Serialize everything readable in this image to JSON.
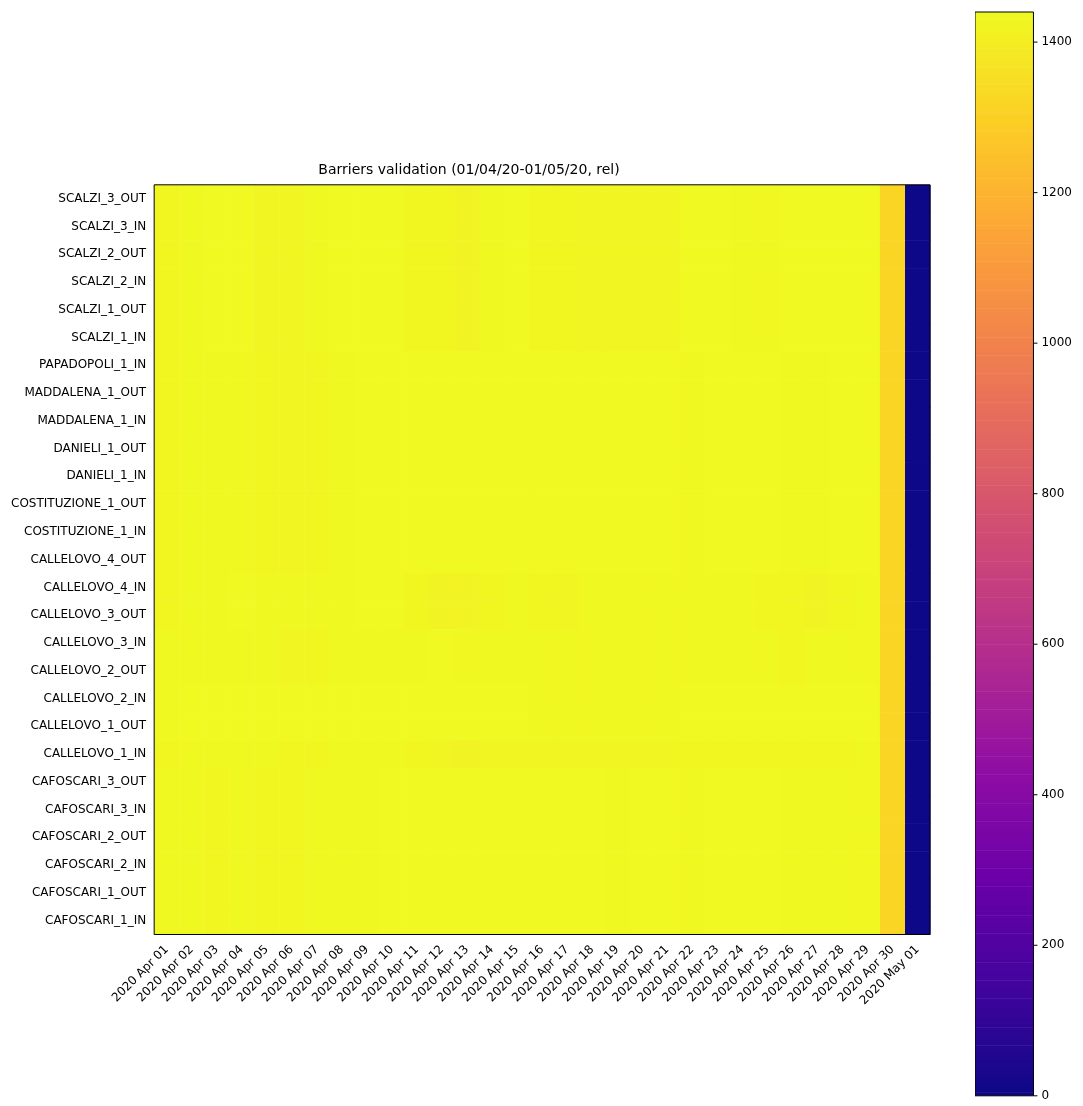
{
  "chart_data": {
    "type": "heatmap",
    "title": "Barriers validation (01/04/20-01/05/20, rel)",
    "categories": [
      "2020 Apr 01",
      "2020 Apr 02",
      "2020 Apr 03",
      "2020 Apr 04",
      "2020 Apr 05",
      "2020 Apr 06",
      "2020 Apr 07",
      "2020 Apr 08",
      "2020 Apr 09",
      "2020 Apr 10",
      "2020 Apr 11",
      "2020 Apr 12",
      "2020 Apr 13",
      "2020 Apr 14",
      "2020 Apr 15",
      "2020 Apr 16",
      "2020 Apr 17",
      "2020 Apr 18",
      "2020 Apr 19",
      "2020 Apr 20",
      "2020 Apr 21",
      "2020 Apr 22",
      "2020 Apr 23",
      "2020 Apr 24",
      "2020 Apr 25",
      "2020 Apr 26",
      "2020 Apr 27",
      "2020 Apr 28",
      "2020 Apr 29",
      "2020 Apr 30",
      "2020 May 01"
    ],
    "y_categories": [
      "SCALZI_3_OUT",
      "SCALZI_3_IN",
      "SCALZI_2_OUT",
      "SCALZI_2_IN",
      "SCALZI_1_OUT",
      "SCALZI_1_IN",
      "PAPADOPOLI_1_IN",
      "MADDALENA_1_OUT",
      "MADDALENA_1_IN",
      "DANIELI_1_OUT",
      "DANIELI_1_IN",
      "COSTITUZIONE_1_OUT",
      "COSTITUZIONE_1_IN",
      "CALLELOVO_4_OUT",
      "CALLELOVO_4_IN",
      "CALLELOVO_3_OUT",
      "CALLELOVO_3_IN",
      "CALLELOVO_2_OUT",
      "CALLELOVO_2_IN",
      "CALLELOVO_1_OUT",
      "CALLELOVO_1_IN",
      "CAFOSCARI_3_OUT",
      "CAFOSCARI_3_IN",
      "CAFOSCARI_2_OUT",
      "CAFOSCARI_2_IN",
      "CAFOSCARI_1_OUT",
      "CAFOSCARI_1_IN"
    ],
    "cells": [
      [
        1430,
        1435,
        1440,
        1440,
        1425,
        1425,
        1435,
        1440,
        1440,
        1440,
        1430,
        1430,
        1420,
        1435,
        1440,
        1430,
        1430,
        1425,
        1425,
        1425,
        1425,
        1440,
        1440,
        1435,
        1435,
        1440,
        1440,
        1440,
        1440,
        1320,
        0
      ],
      [
        1430,
        1435,
        1440,
        1440,
        1425,
        1425,
        1435,
        1440,
        1440,
        1440,
        1430,
        1430,
        1420,
        1435,
        1440,
        1430,
        1430,
        1425,
        1425,
        1425,
        1425,
        1440,
        1440,
        1435,
        1435,
        1440,
        1440,
        1440,
        1440,
        1320,
        0
      ],
      [
        1430,
        1435,
        1440,
        1440,
        1425,
        1425,
        1435,
        1440,
        1440,
        1440,
        1430,
        1430,
        1420,
        1435,
        1440,
        1430,
        1430,
        1425,
        1425,
        1425,
        1425,
        1440,
        1440,
        1435,
        1435,
        1440,
        1440,
        1440,
        1440,
        1320,
        0
      ],
      [
        1430,
        1435,
        1440,
        1440,
        1425,
        1425,
        1435,
        1440,
        1440,
        1440,
        1430,
        1430,
        1420,
        1435,
        1440,
        1430,
        1430,
        1425,
        1425,
        1425,
        1425,
        1440,
        1440,
        1435,
        1435,
        1440,
        1440,
        1440,
        1440,
        1320,
        0
      ],
      [
        1430,
        1435,
        1440,
        1440,
        1425,
        1425,
        1435,
        1440,
        1440,
        1440,
        1430,
        1430,
        1420,
        1435,
        1440,
        1430,
        1430,
        1425,
        1425,
        1425,
        1425,
        1440,
        1440,
        1435,
        1435,
        1440,
        1440,
        1440,
        1440,
        1320,
        0
      ],
      [
        1430,
        1435,
        1440,
        1440,
        1425,
        1425,
        1435,
        1440,
        1440,
        1440,
        1430,
        1430,
        1420,
        1435,
        1440,
        1430,
        1430,
        1425,
        1425,
        1425,
        1425,
        1440,
        1440,
        1435,
        1435,
        1440,
        1440,
        1440,
        1440,
        1320,
        0
      ],
      [
        1430,
        1435,
        1435,
        1435,
        1430,
        1425,
        1430,
        1435,
        1440,
        1440,
        1440,
        1440,
        1440,
        1440,
        1440,
        1440,
        1440,
        1440,
        1440,
        1440,
        1440,
        1435,
        1440,
        1440,
        1440,
        1435,
        1435,
        1440,
        1440,
        1320,
        0
      ],
      [
        1430,
        1435,
        1435,
        1435,
        1430,
        1425,
        1430,
        1435,
        1440,
        1440,
        1440,
        1440,
        1440,
        1440,
        1440,
        1440,
        1440,
        1440,
        1440,
        1440,
        1440,
        1435,
        1440,
        1440,
        1440,
        1435,
        1435,
        1440,
        1440,
        1320,
        0
      ],
      [
        1430,
        1435,
        1435,
        1435,
        1430,
        1425,
        1430,
        1435,
        1440,
        1440,
        1440,
        1440,
        1440,
        1440,
        1440,
        1440,
        1440,
        1440,
        1440,
        1440,
        1440,
        1435,
        1440,
        1440,
        1440,
        1435,
        1435,
        1440,
        1440,
        1320,
        0
      ],
      [
        1430,
        1435,
        1435,
        1435,
        1430,
        1425,
        1430,
        1435,
        1440,
        1440,
        1440,
        1440,
        1440,
        1440,
        1440,
        1440,
        1440,
        1440,
        1440,
        1440,
        1440,
        1435,
        1440,
        1440,
        1440,
        1435,
        1435,
        1440,
        1440,
        1320,
        0
      ],
      [
        1430,
        1435,
        1435,
        1435,
        1430,
        1425,
        1430,
        1435,
        1440,
        1440,
        1440,
        1440,
        1440,
        1440,
        1440,
        1440,
        1440,
        1440,
        1440,
        1440,
        1440,
        1435,
        1440,
        1440,
        1440,
        1435,
        1435,
        1440,
        1440,
        1320,
        0
      ],
      [
        1430,
        1435,
        1435,
        1435,
        1430,
        1425,
        1430,
        1435,
        1440,
        1440,
        1440,
        1440,
        1440,
        1440,
        1440,
        1440,
        1440,
        1440,
        1440,
        1440,
        1440,
        1435,
        1440,
        1440,
        1440,
        1435,
        1435,
        1440,
        1440,
        1320,
        0
      ],
      [
        1430,
        1435,
        1435,
        1435,
        1430,
        1425,
        1430,
        1435,
        1440,
        1440,
        1440,
        1440,
        1440,
        1440,
        1440,
        1440,
        1440,
        1440,
        1440,
        1440,
        1440,
        1435,
        1440,
        1440,
        1440,
        1435,
        1435,
        1440,
        1440,
        1320,
        0
      ],
      [
        1430,
        1435,
        1435,
        1435,
        1430,
        1425,
        1430,
        1435,
        1440,
        1440,
        1440,
        1440,
        1440,
        1440,
        1440,
        1440,
        1440,
        1440,
        1440,
        1440,
        1440,
        1435,
        1440,
        1440,
        1440,
        1435,
        1435,
        1440,
        1440,
        1320,
        0
      ],
      [
        1430,
        1435,
        1435,
        1440,
        1435,
        1435,
        1435,
        1435,
        1440,
        1440,
        1430,
        1420,
        1420,
        1430,
        1435,
        1430,
        1425,
        1435,
        1435,
        1435,
        1435,
        1435,
        1435,
        1435,
        1430,
        1430,
        1420,
        1430,
        1435,
        1320,
        0
      ],
      [
        1430,
        1435,
        1435,
        1440,
        1435,
        1435,
        1435,
        1435,
        1440,
        1440,
        1430,
        1420,
        1420,
        1430,
        1435,
        1430,
        1425,
        1435,
        1435,
        1435,
        1435,
        1435,
        1435,
        1435,
        1430,
        1430,
        1420,
        1430,
        1435,
        1320,
        0
      ],
      [
        1435,
        1435,
        1435,
        1435,
        1435,
        1425,
        1430,
        1435,
        1435,
        1435,
        1435,
        1440,
        1435,
        1435,
        1435,
        1435,
        1435,
        1435,
        1435,
        1435,
        1435,
        1435,
        1435,
        1435,
        1435,
        1430,
        1435,
        1435,
        1435,
        1320,
        0
      ],
      [
        1435,
        1435,
        1435,
        1435,
        1435,
        1425,
        1430,
        1435,
        1435,
        1435,
        1435,
        1440,
        1435,
        1435,
        1435,
        1435,
        1435,
        1435,
        1435,
        1435,
        1435,
        1435,
        1435,
        1435,
        1435,
        1430,
        1435,
        1435,
        1435,
        1320,
        0
      ],
      [
        1435,
        1440,
        1440,
        1440,
        1440,
        1440,
        1440,
        1440,
        1440,
        1440,
        1440,
        1440,
        1440,
        1440,
        1440,
        1435,
        1435,
        1435,
        1435,
        1435,
        1435,
        1440,
        1440,
        1440,
        1440,
        1440,
        1440,
        1440,
        1440,
        1320,
        0
      ],
      [
        1435,
        1440,
        1440,
        1440,
        1440,
        1440,
        1440,
        1440,
        1440,
        1440,
        1440,
        1440,
        1440,
        1440,
        1440,
        1435,
        1435,
        1435,
        1435,
        1435,
        1435,
        1440,
        1440,
        1440,
        1440,
        1440,
        1440,
        1440,
        1440,
        1320,
        0
      ],
      [
        1430,
        1435,
        1435,
        1435,
        1435,
        1430,
        1430,
        1435,
        1435,
        1435,
        1430,
        1425,
        1420,
        1425,
        1425,
        1425,
        1425,
        1425,
        1425,
        1425,
        1425,
        1430,
        1430,
        1430,
        1430,
        1430,
        1430,
        1430,
        1435,
        1320,
        0
      ],
      [
        1435,
        1435,
        1430,
        1435,
        1430,
        1430,
        1435,
        1435,
        1435,
        1440,
        1440,
        1440,
        1440,
        1440,
        1440,
        1440,
        1440,
        1440,
        1435,
        1440,
        1440,
        1435,
        1440,
        1440,
        1440,
        1435,
        1435,
        1435,
        1435,
        1320,
        0
      ],
      [
        1435,
        1435,
        1430,
        1435,
        1430,
        1430,
        1435,
        1435,
        1435,
        1440,
        1440,
        1440,
        1440,
        1440,
        1440,
        1440,
        1440,
        1440,
        1435,
        1440,
        1440,
        1435,
        1440,
        1440,
        1440,
        1435,
        1435,
        1435,
        1435,
        1320,
        0
      ],
      [
        1435,
        1435,
        1430,
        1435,
        1430,
        1430,
        1435,
        1435,
        1435,
        1440,
        1440,
        1440,
        1440,
        1440,
        1440,
        1440,
        1440,
        1440,
        1435,
        1440,
        1440,
        1435,
        1440,
        1440,
        1440,
        1435,
        1435,
        1435,
        1435,
        1320,
        0
      ],
      [
        1435,
        1435,
        1430,
        1435,
        1430,
        1430,
        1435,
        1435,
        1435,
        1440,
        1440,
        1440,
        1440,
        1440,
        1440,
        1440,
        1440,
        1440,
        1435,
        1440,
        1440,
        1435,
        1440,
        1440,
        1440,
        1435,
        1435,
        1435,
        1435,
        1320,
        0
      ],
      [
        1435,
        1435,
        1430,
        1435,
        1430,
        1430,
        1435,
        1435,
        1435,
        1440,
        1440,
        1440,
        1440,
        1440,
        1440,
        1440,
        1440,
        1440,
        1435,
        1440,
        1440,
        1435,
        1440,
        1440,
        1440,
        1435,
        1435,
        1435,
        1435,
        1320,
        0
      ],
      [
        1435,
        1435,
        1430,
        1435,
        1430,
        1430,
        1435,
        1435,
        1435,
        1440,
        1440,
        1440,
        1440,
        1440,
        1440,
        1440,
        1440,
        1440,
        1435,
        1440,
        1440,
        1435,
        1440,
        1440,
        1440,
        1435,
        1435,
        1435,
        1435,
        1320,
        0
      ]
    ],
    "clim": [
      0,
      1440
    ],
    "cticks": [
      0,
      200,
      400,
      600,
      800,
      1000,
      1200,
      1400
    ]
  }
}
